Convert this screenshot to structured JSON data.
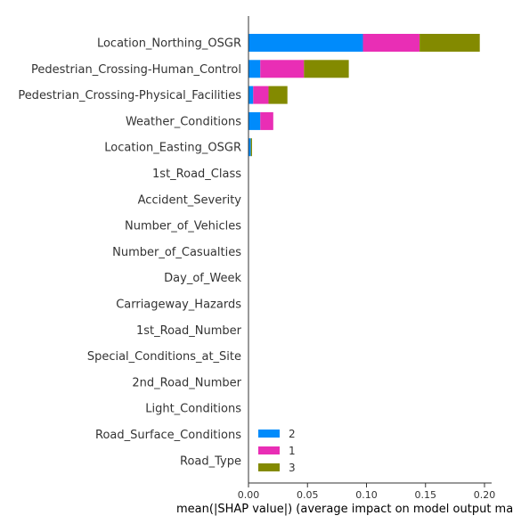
{
  "chart_data": {
    "type": "bar",
    "orientation": "horizontal",
    "stacked": true,
    "categories": [
      "Location_Northing_OSGR",
      "Pedestrian_Crossing-Human_Control",
      "Pedestrian_Crossing-Physical_Facilities",
      "Weather_Conditions",
      "Location_Easting_OSGR",
      "1st_Road_Class",
      "Accident_Severity",
      "Number_of_Vehicles",
      "Number_of_Casualties",
      "Day_of_Week",
      "Carriageway_Hazards",
      "1st_Road_Number",
      "Special_Conditions_at_Site",
      "2nd_Road_Number",
      "Light_Conditions",
      "Road_Surface_Conditions",
      "Road_Type"
    ],
    "series": [
      {
        "name": "2",
        "color": "#008bfb",
        "values": [
          0.097,
          0.01,
          0.004,
          0.01,
          0.002,
          0,
          0,
          0,
          0,
          0,
          0,
          0,
          0,
          0,
          0,
          0,
          0
        ]
      },
      {
        "name": "1",
        "color": "#e92eb5",
        "values": [
          0.048,
          0.037,
          0.013,
          0.011,
          0,
          0,
          0,
          0,
          0,
          0,
          0,
          0,
          0,
          0,
          0,
          0,
          0
        ]
      },
      {
        "name": "3",
        "color": "#838a00",
        "values": [
          0.051,
          0.038,
          0.016,
          0,
          0.001,
          0,
          0,
          0,
          0,
          0,
          0,
          0,
          0,
          0,
          0,
          0,
          0
        ]
      }
    ],
    "xlabel": "mean(|SHAP value|) (average impact on model output ma",
    "xlim": [
      0,
      0.205
    ],
    "xticks": [
      0.0,
      0.05,
      0.1,
      0.15,
      0.2
    ],
    "xtick_labels": [
      "0.00",
      "0.05",
      "0.10",
      "0.15",
      "0.20"
    ],
    "grid": false,
    "legend_position": "lower-left inside plot"
  }
}
